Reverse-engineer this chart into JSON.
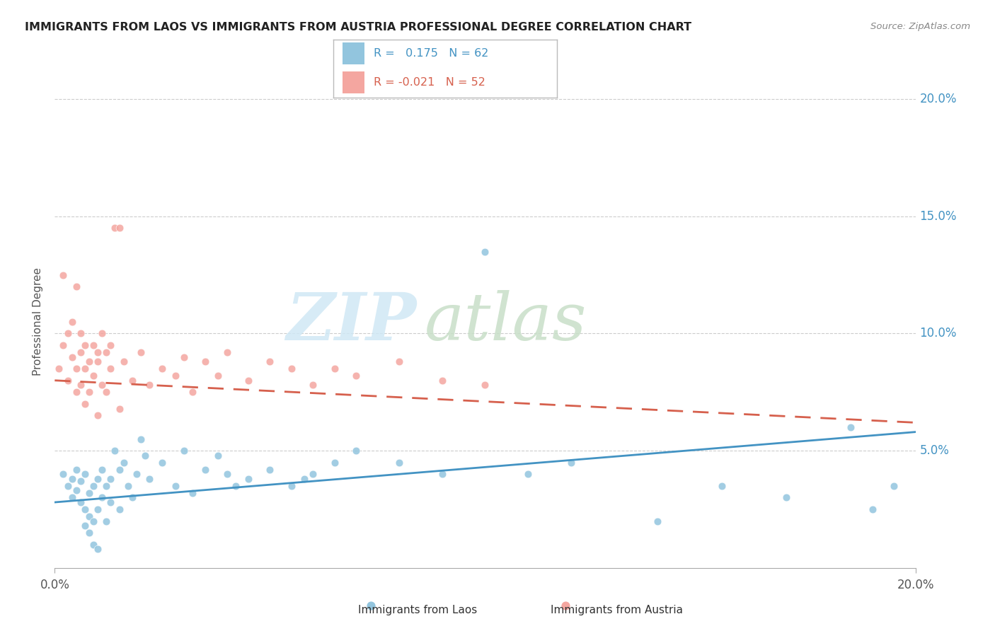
{
  "title": "IMMIGRANTS FROM LAOS VS IMMIGRANTS FROM AUSTRIA PROFESSIONAL DEGREE CORRELATION CHART",
  "source": "Source: ZipAtlas.com",
  "ylabel": "Professional Degree",
  "xmin": 0.0,
  "xmax": 0.2,
  "ymin": 0.0,
  "ymax": 0.21,
  "yticks": [
    0.05,
    0.1,
    0.15,
    0.2
  ],
  "ytick_labels": [
    "5.0%",
    "10.0%",
    "15.0%",
    "20.0%"
  ],
  "xtick_labels": [
    "0.0%",
    "20.0%"
  ],
  "legend_laos_R": " 0.175",
  "legend_laos_N": "62",
  "legend_austria_R": "-0.021",
  "legend_austria_N": "52",
  "laos_color": "#92c5de",
  "austria_color": "#f4a6a0",
  "laos_line_color": "#4393c3",
  "austria_line_color": "#d6604d",
  "watermark_zip": "ZIP",
  "watermark_atlas": "atlas",
  "laos_scatter_x": [
    0.002,
    0.003,
    0.004,
    0.004,
    0.005,
    0.005,
    0.006,
    0.006,
    0.007,
    0.007,
    0.007,
    0.008,
    0.008,
    0.008,
    0.009,
    0.009,
    0.009,
    0.01,
    0.01,
    0.01,
    0.011,
    0.011,
    0.012,
    0.012,
    0.013,
    0.013,
    0.014,
    0.015,
    0.015,
    0.016,
    0.017,
    0.018,
    0.019,
    0.02,
    0.021,
    0.022,
    0.025,
    0.028,
    0.03,
    0.032,
    0.035,
    0.038,
    0.04,
    0.042,
    0.045,
    0.05,
    0.055,
    0.058,
    0.06,
    0.065,
    0.07,
    0.08,
    0.09,
    0.1,
    0.11,
    0.12,
    0.14,
    0.155,
    0.17,
    0.185,
    0.19,
    0.195
  ],
  "laos_scatter_y": [
    0.04,
    0.035,
    0.038,
    0.03,
    0.042,
    0.033,
    0.037,
    0.028,
    0.04,
    0.025,
    0.018,
    0.032,
    0.022,
    0.015,
    0.035,
    0.02,
    0.01,
    0.038,
    0.025,
    0.008,
    0.03,
    0.042,
    0.035,
    0.02,
    0.038,
    0.028,
    0.05,
    0.042,
    0.025,
    0.045,
    0.035,
    0.03,
    0.04,
    0.055,
    0.048,
    0.038,
    0.045,
    0.035,
    0.05,
    0.032,
    0.042,
    0.048,
    0.04,
    0.035,
    0.038,
    0.042,
    0.035,
    0.038,
    0.04,
    0.045,
    0.05,
    0.045,
    0.04,
    0.135,
    0.04,
    0.045,
    0.02,
    0.035,
    0.03,
    0.06,
    0.025,
    0.035
  ],
  "austria_scatter_x": [
    0.001,
    0.002,
    0.002,
    0.003,
    0.003,
    0.004,
    0.004,
    0.005,
    0.005,
    0.005,
    0.006,
    0.006,
    0.006,
    0.007,
    0.007,
    0.007,
    0.008,
    0.008,
    0.009,
    0.009,
    0.01,
    0.01,
    0.01,
    0.011,
    0.011,
    0.012,
    0.012,
    0.013,
    0.013,
    0.014,
    0.015,
    0.015,
    0.016,
    0.018,
    0.02,
    0.022,
    0.025,
    0.028,
    0.03,
    0.032,
    0.035,
    0.038,
    0.04,
    0.045,
    0.05,
    0.055,
    0.06,
    0.065,
    0.07,
    0.08,
    0.09,
    0.1
  ],
  "austria_scatter_y": [
    0.085,
    0.125,
    0.095,
    0.1,
    0.08,
    0.09,
    0.105,
    0.075,
    0.085,
    0.12,
    0.092,
    0.078,
    0.1,
    0.085,
    0.095,
    0.07,
    0.088,
    0.075,
    0.095,
    0.082,
    0.088,
    0.092,
    0.065,
    0.1,
    0.078,
    0.092,
    0.075,
    0.085,
    0.095,
    0.145,
    0.145,
    0.068,
    0.088,
    0.08,
    0.092,
    0.078,
    0.085,
    0.082,
    0.09,
    0.075,
    0.088,
    0.082,
    0.092,
    0.08,
    0.088,
    0.085,
    0.078,
    0.085,
    0.082,
    0.088,
    0.08,
    0.078
  ],
  "laos_line_x0": 0.0,
  "laos_line_x1": 0.2,
  "laos_line_y0": 0.028,
  "laos_line_y1": 0.058,
  "austria_line_x0": 0.0,
  "austria_line_x1": 0.2,
  "austria_line_y0": 0.08,
  "austria_line_y1": 0.062
}
